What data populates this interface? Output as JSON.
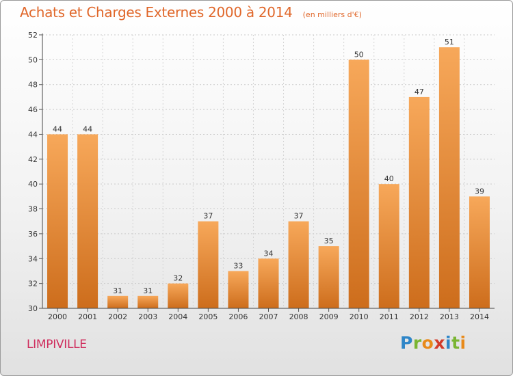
{
  "title": {
    "main": "Achats et Charges Externes 2000 à 2014",
    "unit": "(en milliers d'€)"
  },
  "commune": "LIMPIVILLE",
  "logo": {
    "text": "Proxiti",
    "letters": [
      "P",
      "r",
      "o",
      "x",
      "i",
      "t",
      "i"
    ]
  },
  "colors": {
    "title": "#e0672a",
    "bar_top": "#f7a85a",
    "bar_bottom": "#cd6d1c",
    "commune": "#cf2c5c"
  },
  "chart_data": {
    "type": "bar",
    "title": "Achats et Charges Externes 2000 à 2014",
    "xlabel": "",
    "ylabel": "",
    "ylim": [
      30,
      52
    ],
    "yticks": [
      30,
      32,
      34,
      36,
      38,
      40,
      42,
      44,
      46,
      48,
      50,
      52
    ],
    "grid": true,
    "categories": [
      "2000",
      "2001",
      "2002",
      "2003",
      "2004",
      "2005",
      "2006",
      "2007",
      "2008",
      "2009",
      "2010",
      "2011",
      "2012",
      "2013",
      "2014"
    ],
    "values": [
      44,
      44,
      31,
      31,
      32,
      37,
      33,
      34,
      37,
      35,
      50,
      40,
      47,
      51,
      39
    ]
  }
}
